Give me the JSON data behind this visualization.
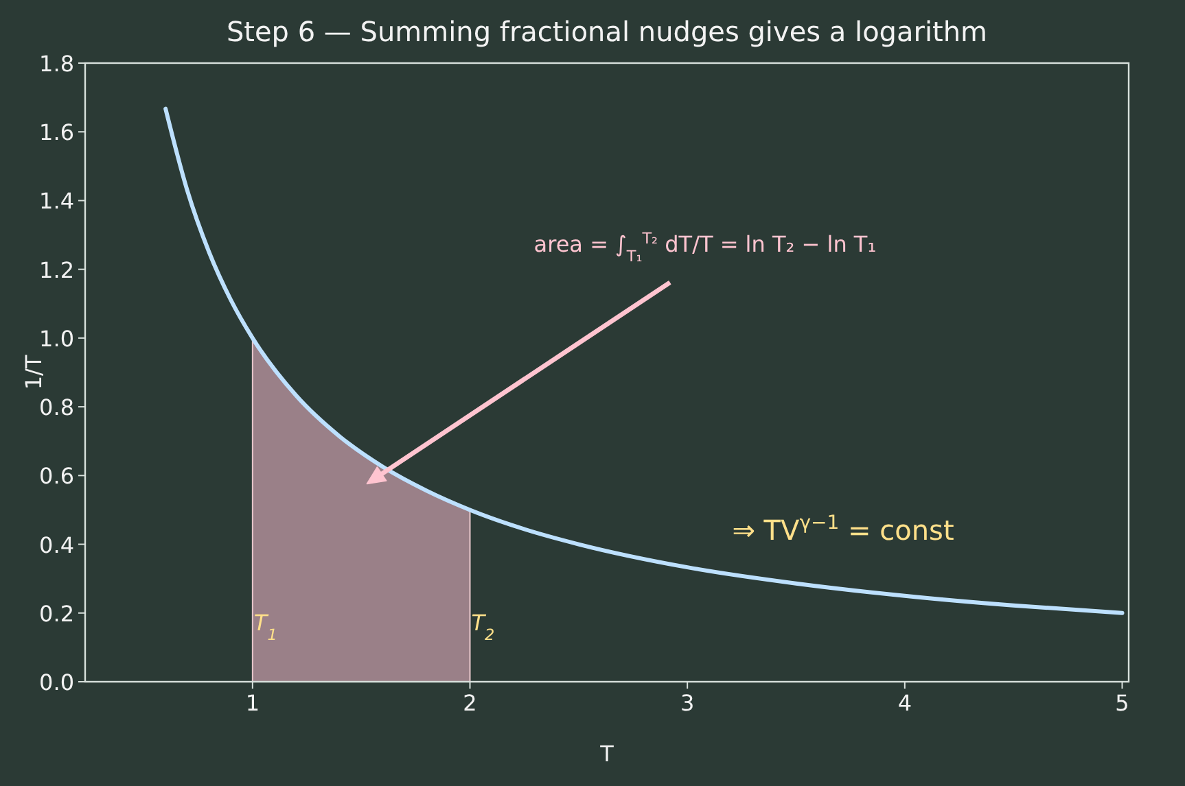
{
  "chart_data": {
    "type": "line",
    "title": "Step 6 — Summing fractional nudges gives a logarithm",
    "xlabel": "T",
    "ylabel": "1/T",
    "xlim": [
      0.23,
      5.03
    ],
    "xticks": [
      1,
      2,
      3,
      4,
      5
    ],
    "ylim": [
      0,
      1.8
    ],
    "yticks": [
      {
        "value": 0,
        "label": "0.0"
      },
      {
        "value": 0.2,
        "label": "0.2"
      },
      {
        "value": 0.4,
        "label": "0.4"
      },
      {
        "value": 0.6,
        "label": "0.6"
      },
      {
        "value": 0.8,
        "label": "0.8"
      },
      {
        "value": 1,
        "label": "1.0"
      },
      {
        "value": 1.2,
        "label": "1.2"
      },
      {
        "value": 1.4,
        "label": "1.4"
      },
      {
        "value": 1.6,
        "label": "1.6"
      },
      {
        "value": 1.8,
        "label": "1.8"
      }
    ],
    "grid": false,
    "series": [
      {
        "type": "area",
        "color": "#9a8088",
        "x": [
          1,
          1.2,
          1.4,
          1.6,
          1.8,
          2
        ],
        "values": [
          1,
          0.833,
          0.714,
          0.625,
          0.556,
          0.5
        ]
      },
      {
        "color": "#bde0fe",
        "x": [
          0.6,
          0.7,
          0.8,
          0.9,
          1,
          1.2,
          1.4,
          1.6,
          1.8,
          2,
          2.25,
          2.5,
          3,
          3.5,
          4,
          4.5,
          5
        ],
        "values": [
          1.667,
          1.429,
          1.25,
          1.111,
          1,
          0.833,
          0.714,
          0.625,
          0.556,
          0.5,
          0.444,
          0.4,
          0.333,
          0.286,
          0.25,
          0.222,
          0.2
        ]
      }
    ],
    "annotations": [
      "area = ∫$_{T₁}$$^{T₂}$ dT/T = ln T₂ − ln T₁",
      {
        "text": "T$_{1}$",
        "x": 1,
        "y": 0.15
      },
      {
        "text": "T$_{2}$",
        "x": 2,
        "y": 0.15
      },
      "⇒ TV$^{γ−1}$ = const"
    ]
  }
}
